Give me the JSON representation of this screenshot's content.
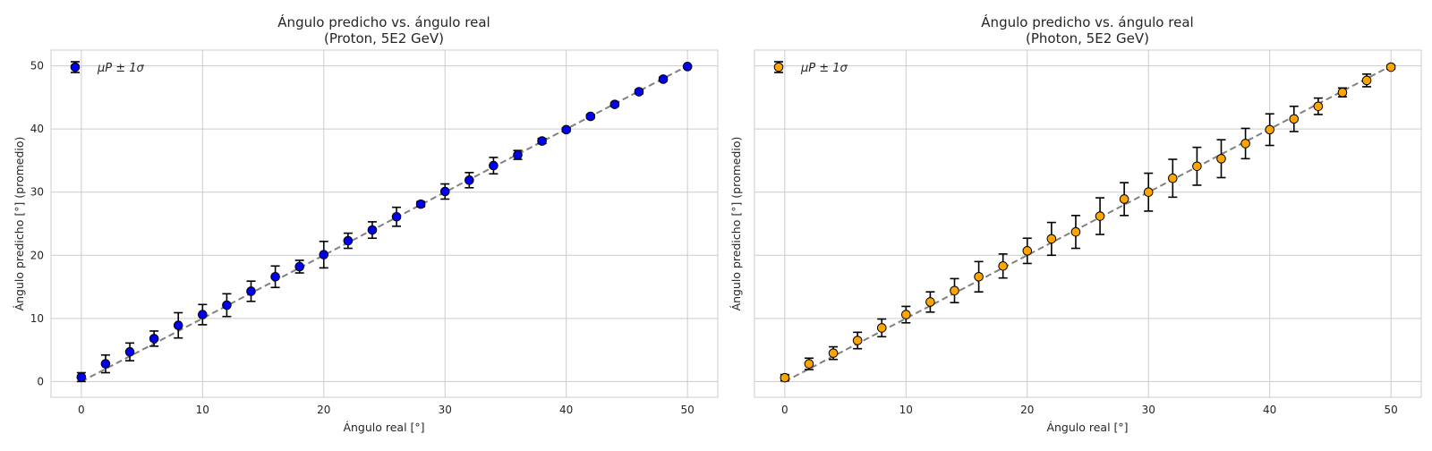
{
  "chart_data": [
    {
      "type": "scatter",
      "title_line1": "Ángulo predicho vs. ángulo real",
      "title_line2": "(Proton, 5E2 GeV)",
      "xlabel": "Ángulo real [°]",
      "ylabel": "Ángulo predicho [°] (promedio)",
      "xlim": [
        -2.5,
        52.5
      ],
      "ylim": [
        -2.5,
        52.5
      ],
      "xticks": [
        0,
        10,
        20,
        30,
        40,
        50
      ],
      "yticks": [
        0,
        10,
        20,
        30,
        40,
        50
      ],
      "grid": true,
      "legend_position": "top-left",
      "series": [
        {
          "name": "μP ± 1σ",
          "marker_color": "#0000ee",
          "x": [
            0,
            2,
            4,
            6,
            8,
            10,
            12,
            14,
            16,
            18,
            20,
            22,
            24,
            26,
            28,
            30,
            32,
            34,
            36,
            38,
            40,
            42,
            44,
            46,
            48,
            50
          ],
          "y": [
            0.7,
            2.8,
            4.7,
            6.8,
            8.9,
            10.6,
            12.1,
            14.3,
            16.6,
            18.2,
            20.1,
            22.3,
            24.0,
            26.1,
            28.1,
            30.1,
            31.9,
            34.2,
            35.9,
            38.1,
            39.9,
            42.0,
            43.9,
            45.9,
            47.9,
            49.9
          ],
          "err": [
            0.7,
            1.4,
            1.4,
            1.2,
            2.0,
            1.6,
            1.8,
            1.6,
            1.7,
            1.0,
            2.1,
            1.2,
            1.3,
            1.5,
            0.4,
            1.2,
            1.2,
            1.3,
            0.7,
            0.4,
            0.3,
            0.3,
            0.3,
            0.3,
            0.3,
            0.2
          ]
        }
      ],
      "reference_line": {
        "from": [
          0,
          0
        ],
        "to": [
          50,
          50
        ],
        "style": "dashed",
        "color": "#808080"
      }
    },
    {
      "type": "scatter",
      "title_line1": "Ángulo predicho vs. ángulo real",
      "title_line2": "(Photon, 5E2 GeV)",
      "xlabel": "Ángulo real [°]",
      "ylabel": "Ángulo predicho [°] (promedio)",
      "xlim": [
        -2.5,
        52.5
      ],
      "ylim": [
        -2.5,
        52.5
      ],
      "xticks": [
        0,
        10,
        20,
        30,
        40,
        50
      ],
      "yticks": [],
      "grid": true,
      "legend_position": "top-left",
      "series": [
        {
          "name": "μP ± 1σ",
          "marker_color": "#ffa500",
          "x": [
            0,
            2,
            4,
            6,
            8,
            10,
            12,
            14,
            16,
            18,
            20,
            22,
            24,
            26,
            28,
            30,
            32,
            34,
            36,
            38,
            40,
            42,
            44,
            46,
            48,
            50
          ],
          "y": [
            0.6,
            2.8,
            4.5,
            6.5,
            8.5,
            10.6,
            12.6,
            14.4,
            16.6,
            18.3,
            20.7,
            22.6,
            23.7,
            26.2,
            28.9,
            30.0,
            32.2,
            34.1,
            35.3,
            37.7,
            39.9,
            41.6,
            43.6,
            45.8,
            47.7,
            49.8
          ],
          "err": [
            0.5,
            0.9,
            1.0,
            1.3,
            1.4,
            1.3,
            1.6,
            1.9,
            2.4,
            1.9,
            2.0,
            2.6,
            2.6,
            2.9,
            2.6,
            3.0,
            3.0,
            3.0,
            3.0,
            2.4,
            2.5,
            2.0,
            1.3,
            0.7,
            1.0,
            0.3
          ]
        }
      ],
      "reference_line": {
        "from": [
          0,
          0
        ],
        "to": [
          50,
          50
        ],
        "style": "dashed",
        "color": "#808080"
      }
    }
  ]
}
